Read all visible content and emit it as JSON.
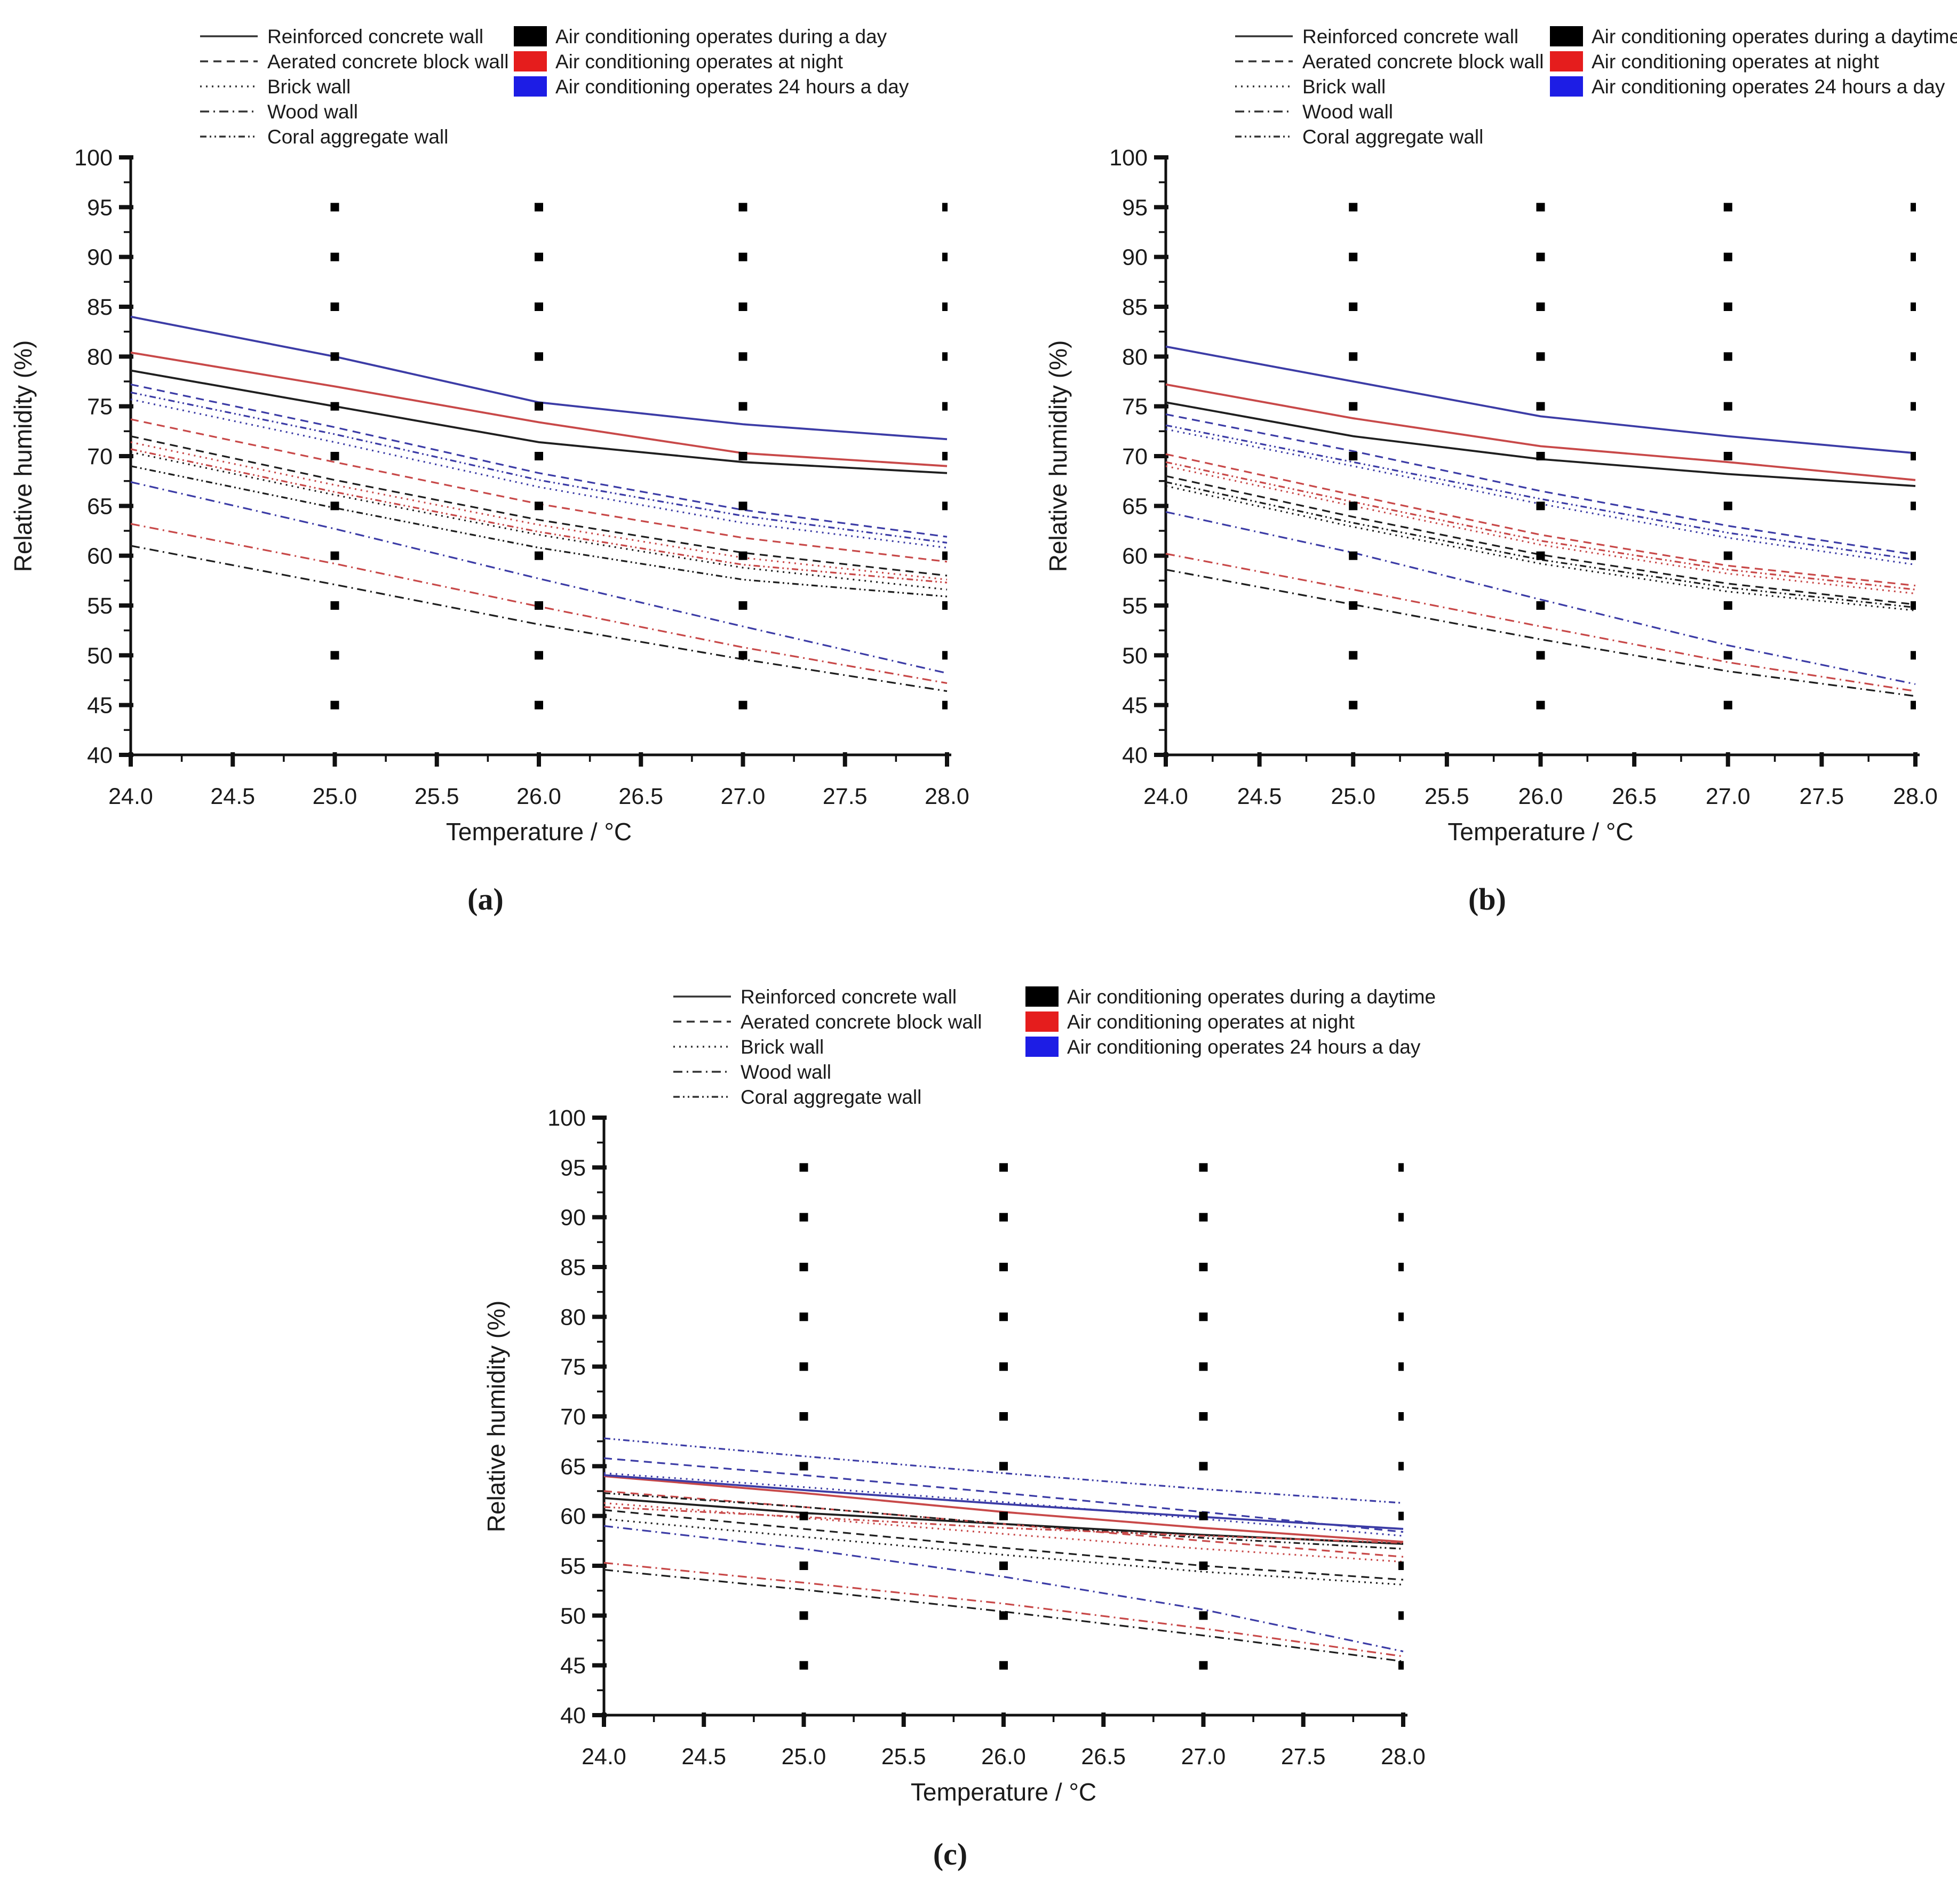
{
  "figure": {
    "captions": {
      "a": "(a)",
      "b": "(b)",
      "c": "(c)"
    }
  },
  "axes": {
    "x_label": "Temperature / °C",
    "y_label": "Relative humidity (%)",
    "x_ticks": [
      "24.0",
      "24.5",
      "25.0",
      "25.5",
      "26.0",
      "26.5",
      "27.0",
      "27.5",
      "28.0"
    ],
    "y_ticks": [
      "40",
      "45",
      "50",
      "55",
      "60",
      "65",
      "70",
      "75",
      "80",
      "85",
      "90",
      "95",
      "100"
    ],
    "x_range": [
      24,
      28
    ],
    "y_range": [
      40,
      100
    ],
    "grid_dot_columns": [
      25,
      26,
      27,
      28
    ],
    "grid_dot_rows": [
      45,
      50,
      55,
      60,
      65,
      70,
      75,
      80,
      85,
      90,
      95
    ]
  },
  "colors": {
    "day": "#1f1f1f",
    "night": "#c84949",
    "h24": "#3c3ca6",
    "swatch_day": "#000000",
    "swatch_night": "#e51d1d",
    "swatch_h24": "#1d1de5"
  },
  "legend": {
    "walls": [
      {
        "label": "Reinforced concrete wall",
        "dash": "solid"
      },
      {
        "label": "Aerated concrete block wall",
        "dash": "dashed"
      },
      {
        "label": "Brick wall",
        "dash": "dotted"
      },
      {
        "label": "Wood wall",
        "dash": "dashdot"
      },
      {
        "label": "Coral aggregate wall",
        "dash": "dashdotdot"
      }
    ],
    "ac_modes_a": [
      {
        "label": "Air conditioning operates during a day",
        "color": "#000000"
      },
      {
        "label": "Air conditioning operates at night",
        "color": "#e51d1d"
      },
      {
        "label": "Air conditioning operates 24 hours a day",
        "color": "#1d1de5"
      }
    ],
    "ac_modes_bc": [
      {
        "label": "Air conditioning operates during a daytime",
        "color": "#000000"
      },
      {
        "label": "Air conditioning operates at night",
        "color": "#e51d1d"
      },
      {
        "label": "Air conditioning operates 24 hours a day",
        "color": "#1d1de5"
      }
    ]
  },
  "chart_data": [
    {
      "id": "a",
      "type": "line",
      "caption": "(a)",
      "xlabel": "Temperature / °C",
      "ylabel": "Relative humidity (%)",
      "xlim": [
        24,
        28
      ],
      "ylim": [
        40,
        100
      ],
      "x": [
        24,
        25,
        26,
        27,
        28
      ],
      "series": [
        {
          "wall": "Reinforced concrete wall",
          "ac": "day",
          "dash": "solid",
          "values": [
            78.6,
            75.0,
            71.4,
            69.4,
            68.3
          ]
        },
        {
          "wall": "Reinforced concrete wall",
          "ac": "night",
          "dash": "solid",
          "values": [
            80.4,
            77.0,
            73.4,
            70.3,
            69.0
          ]
        },
        {
          "wall": "Reinforced concrete wall",
          "ac": "h24",
          "dash": "solid",
          "values": [
            84.0,
            80.0,
            75.4,
            73.2,
            71.7
          ]
        },
        {
          "wall": "Aerated concrete block wall",
          "ac": "day",
          "dash": "dashed",
          "values": [
            72.0,
            67.6,
            63.6,
            60.3,
            58.0
          ]
        },
        {
          "wall": "Aerated concrete block wall",
          "ac": "night",
          "dash": "dashed",
          "values": [
            73.7,
            69.4,
            65.2,
            61.8,
            59.4
          ]
        },
        {
          "wall": "Aerated concrete block wall",
          "ac": "h24",
          "dash": "dashed",
          "values": [
            77.2,
            72.9,
            68.3,
            64.6,
            61.9
          ]
        },
        {
          "wall": "Brick wall",
          "ac": "day",
          "dash": "dotted",
          "values": [
            70.4,
            66.1,
            62.1,
            58.8,
            56.6
          ]
        },
        {
          "wall": "Brick wall",
          "ac": "night",
          "dash": "dotted",
          "values": [
            71.4,
            67.1,
            63.1,
            59.8,
            57.6
          ]
        },
        {
          "wall": "Brick wall",
          "ac": "h24",
          "dash": "dotted",
          "values": [
            75.7,
            71.4,
            66.9,
            63.3,
            60.8
          ]
        },
        {
          "wall": "Wood wall",
          "ac": "day",
          "dash": "dashdot",
          "values": [
            61.0,
            57.1,
            53.1,
            49.6,
            46.4
          ]
        },
        {
          "wall": "Wood wall",
          "ac": "night",
          "dash": "dashdot",
          "values": [
            63.2,
            59.2,
            54.9,
            50.8,
            47.2
          ]
        },
        {
          "wall": "Wood wall",
          "ac": "h24",
          "dash": "dashdot",
          "values": [
            67.4,
            62.7,
            57.7,
            52.9,
            48.2
          ]
        },
        {
          "wall": "Coral aggregate wall",
          "ac": "day",
          "dash": "dashdotdot",
          "values": [
            69.0,
            64.8,
            60.8,
            57.6,
            55.9
          ]
        },
        {
          "wall": "Coral aggregate wall",
          "ac": "night",
          "dash": "dashdotdot",
          "values": [
            70.7,
            66.4,
            62.4,
            59.1,
            57.3
          ]
        },
        {
          "wall": "Coral aggregate wall",
          "ac": "h24",
          "dash": "dashdotdot",
          "values": [
            76.4,
            72.2,
            67.6,
            64.0,
            61.3
          ]
        }
      ]
    },
    {
      "id": "b",
      "type": "line",
      "caption": "(b)",
      "xlabel": "Temperature / °C",
      "ylabel": "Relative humidity (%)",
      "xlim": [
        24,
        28
      ],
      "ylim": [
        40,
        100
      ],
      "x": [
        24,
        25,
        26,
        27,
        28
      ],
      "series": [
        {
          "wall": "Reinforced concrete wall",
          "ac": "day",
          "dash": "solid",
          "values": [
            75.4,
            72.0,
            69.7,
            68.2,
            67.0
          ]
        },
        {
          "wall": "Reinforced concrete wall",
          "ac": "night",
          "dash": "solid",
          "values": [
            77.2,
            73.8,
            71.0,
            69.4,
            67.6
          ]
        },
        {
          "wall": "Reinforced concrete wall",
          "ac": "h24",
          "dash": "solid",
          "values": [
            81.0,
            77.5,
            74.0,
            72.0,
            70.3
          ]
        },
        {
          "wall": "Aerated concrete block wall",
          "ac": "day",
          "dash": "dashed",
          "values": [
            68.0,
            63.9,
            60.1,
            57.2,
            55.1
          ]
        },
        {
          "wall": "Aerated concrete block wall",
          "ac": "night",
          "dash": "dashed",
          "values": [
            70.2,
            66.1,
            62.1,
            59.0,
            57.0
          ]
        },
        {
          "wall": "Aerated concrete block wall",
          "ac": "h24",
          "dash": "dashed",
          "values": [
            74.2,
            70.5,
            66.5,
            63.0,
            60.1
          ]
        },
        {
          "wall": "Brick wall",
          "ac": "day",
          "dash": "dotted",
          "values": [
            67.0,
            62.9,
            59.2,
            56.4,
            54.5
          ]
        },
        {
          "wall": "Brick wall",
          "ac": "night",
          "dash": "dotted",
          "values": [
            69.0,
            65.0,
            61.1,
            58.2,
            56.2
          ]
        },
        {
          "wall": "Brick wall",
          "ac": "h24",
          "dash": "dotted",
          "values": [
            72.7,
            69.0,
            65.2,
            61.8,
            59.1
          ]
        },
        {
          "wall": "Wood wall",
          "ac": "day",
          "dash": "dashdot",
          "values": [
            58.6,
            55.1,
            51.6,
            48.4,
            45.9
          ]
        },
        {
          "wall": "Wood wall",
          "ac": "night",
          "dash": "dashdot",
          "values": [
            60.2,
            56.6,
            52.9,
            49.3,
            46.4
          ]
        },
        {
          "wall": "Wood wall",
          "ac": "h24",
          "dash": "dashdot",
          "values": [
            64.4,
            60.3,
            55.6,
            51.0,
            47.1
          ]
        },
        {
          "wall": "Coral aggregate wall",
          "ac": "day",
          "dash": "dashdotdot",
          "values": [
            67.4,
            63.3,
            59.6,
            56.8,
            54.8
          ]
        },
        {
          "wall": "Coral aggregate wall",
          "ac": "night",
          "dash": "dashdotdot",
          "values": [
            69.4,
            65.4,
            61.5,
            58.6,
            56.6
          ]
        },
        {
          "wall": "Coral aggregate wall",
          "ac": "h24",
          "dash": "dashdotdot",
          "values": [
            73.1,
            69.4,
            65.7,
            62.3,
            59.6
          ]
        }
      ]
    },
    {
      "id": "c",
      "type": "line",
      "caption": "(c)",
      "xlabel": "Temperature / °C",
      "ylabel": "Relative humidity (%)",
      "xlim": [
        24,
        28
      ],
      "ylim": [
        40,
        100
      ],
      "x": [
        24,
        25,
        26,
        27,
        28
      ],
      "series": [
        {
          "wall": "Reinforced concrete wall",
          "ac": "day",
          "dash": "solid",
          "values": [
            61.8,
            60.3,
            59.2,
            58.1,
            57.2
          ]
        },
        {
          "wall": "Reinforced concrete wall",
          "ac": "night",
          "dash": "solid",
          "values": [
            64.0,
            62.3,
            60.4,
            58.8,
            57.4
          ]
        },
        {
          "wall": "Reinforced concrete wall",
          "ac": "h24",
          "dash": "solid",
          "values": [
            64.1,
            62.6,
            61.2,
            59.9,
            58.7
          ]
        },
        {
          "wall": "Aerated concrete block wall",
          "ac": "day",
          "dash": "dashed",
          "values": [
            60.6,
            58.7,
            56.8,
            55.0,
            53.6
          ]
        },
        {
          "wall": "Aerated concrete block wall",
          "ac": "night",
          "dash": "dashed",
          "values": [
            62.5,
            60.9,
            59.2,
            57.5,
            55.9
          ]
        },
        {
          "wall": "Aerated concrete block wall",
          "ac": "h24",
          "dash": "dashed",
          "values": [
            65.8,
            64.1,
            62.3,
            60.4,
            58.4
          ]
        },
        {
          "wall": "Brick wall",
          "ac": "day",
          "dash": "dotted",
          "values": [
            59.7,
            57.9,
            56.1,
            54.4,
            53.1
          ]
        },
        {
          "wall": "Brick wall",
          "ac": "night",
          "dash": "dotted",
          "values": [
            61.3,
            59.8,
            58.2,
            56.7,
            55.4
          ]
        },
        {
          "wall": "Brick wall",
          "ac": "h24",
          "dash": "dotted",
          "values": [
            64.3,
            62.9,
            61.4,
            59.7,
            58.0
          ]
        },
        {
          "wall": "Wood wall",
          "ac": "day",
          "dash": "dashdot",
          "values": [
            54.6,
            52.6,
            50.4,
            48.0,
            45.4
          ]
        },
        {
          "wall": "Wood wall",
          "ac": "night",
          "dash": "dashdot",
          "values": [
            55.3,
            53.3,
            51.2,
            48.7,
            45.9
          ]
        },
        {
          "wall": "Wood wall",
          "ac": "h24",
          "dash": "dashdot",
          "values": [
            59.0,
            56.7,
            53.9,
            50.6,
            46.4
          ]
        },
        {
          "wall": "Coral aggregate wall",
          "ac": "day",
          "dash": "dashdotdot",
          "values": [
            62.3,
            60.9,
            59.2,
            57.8,
            56.7
          ]
        },
        {
          "wall": "Coral aggregate wall",
          "ac": "night",
          "dash": "dashdotdot",
          "values": [
            60.9,
            59.9,
            58.8,
            58.0,
            57.3
          ]
        },
        {
          "wall": "Coral aggregate wall",
          "ac": "h24",
          "dash": "dashdotdot",
          "values": [
            67.8,
            66.0,
            64.3,
            62.7,
            61.3
          ]
        }
      ]
    }
  ]
}
